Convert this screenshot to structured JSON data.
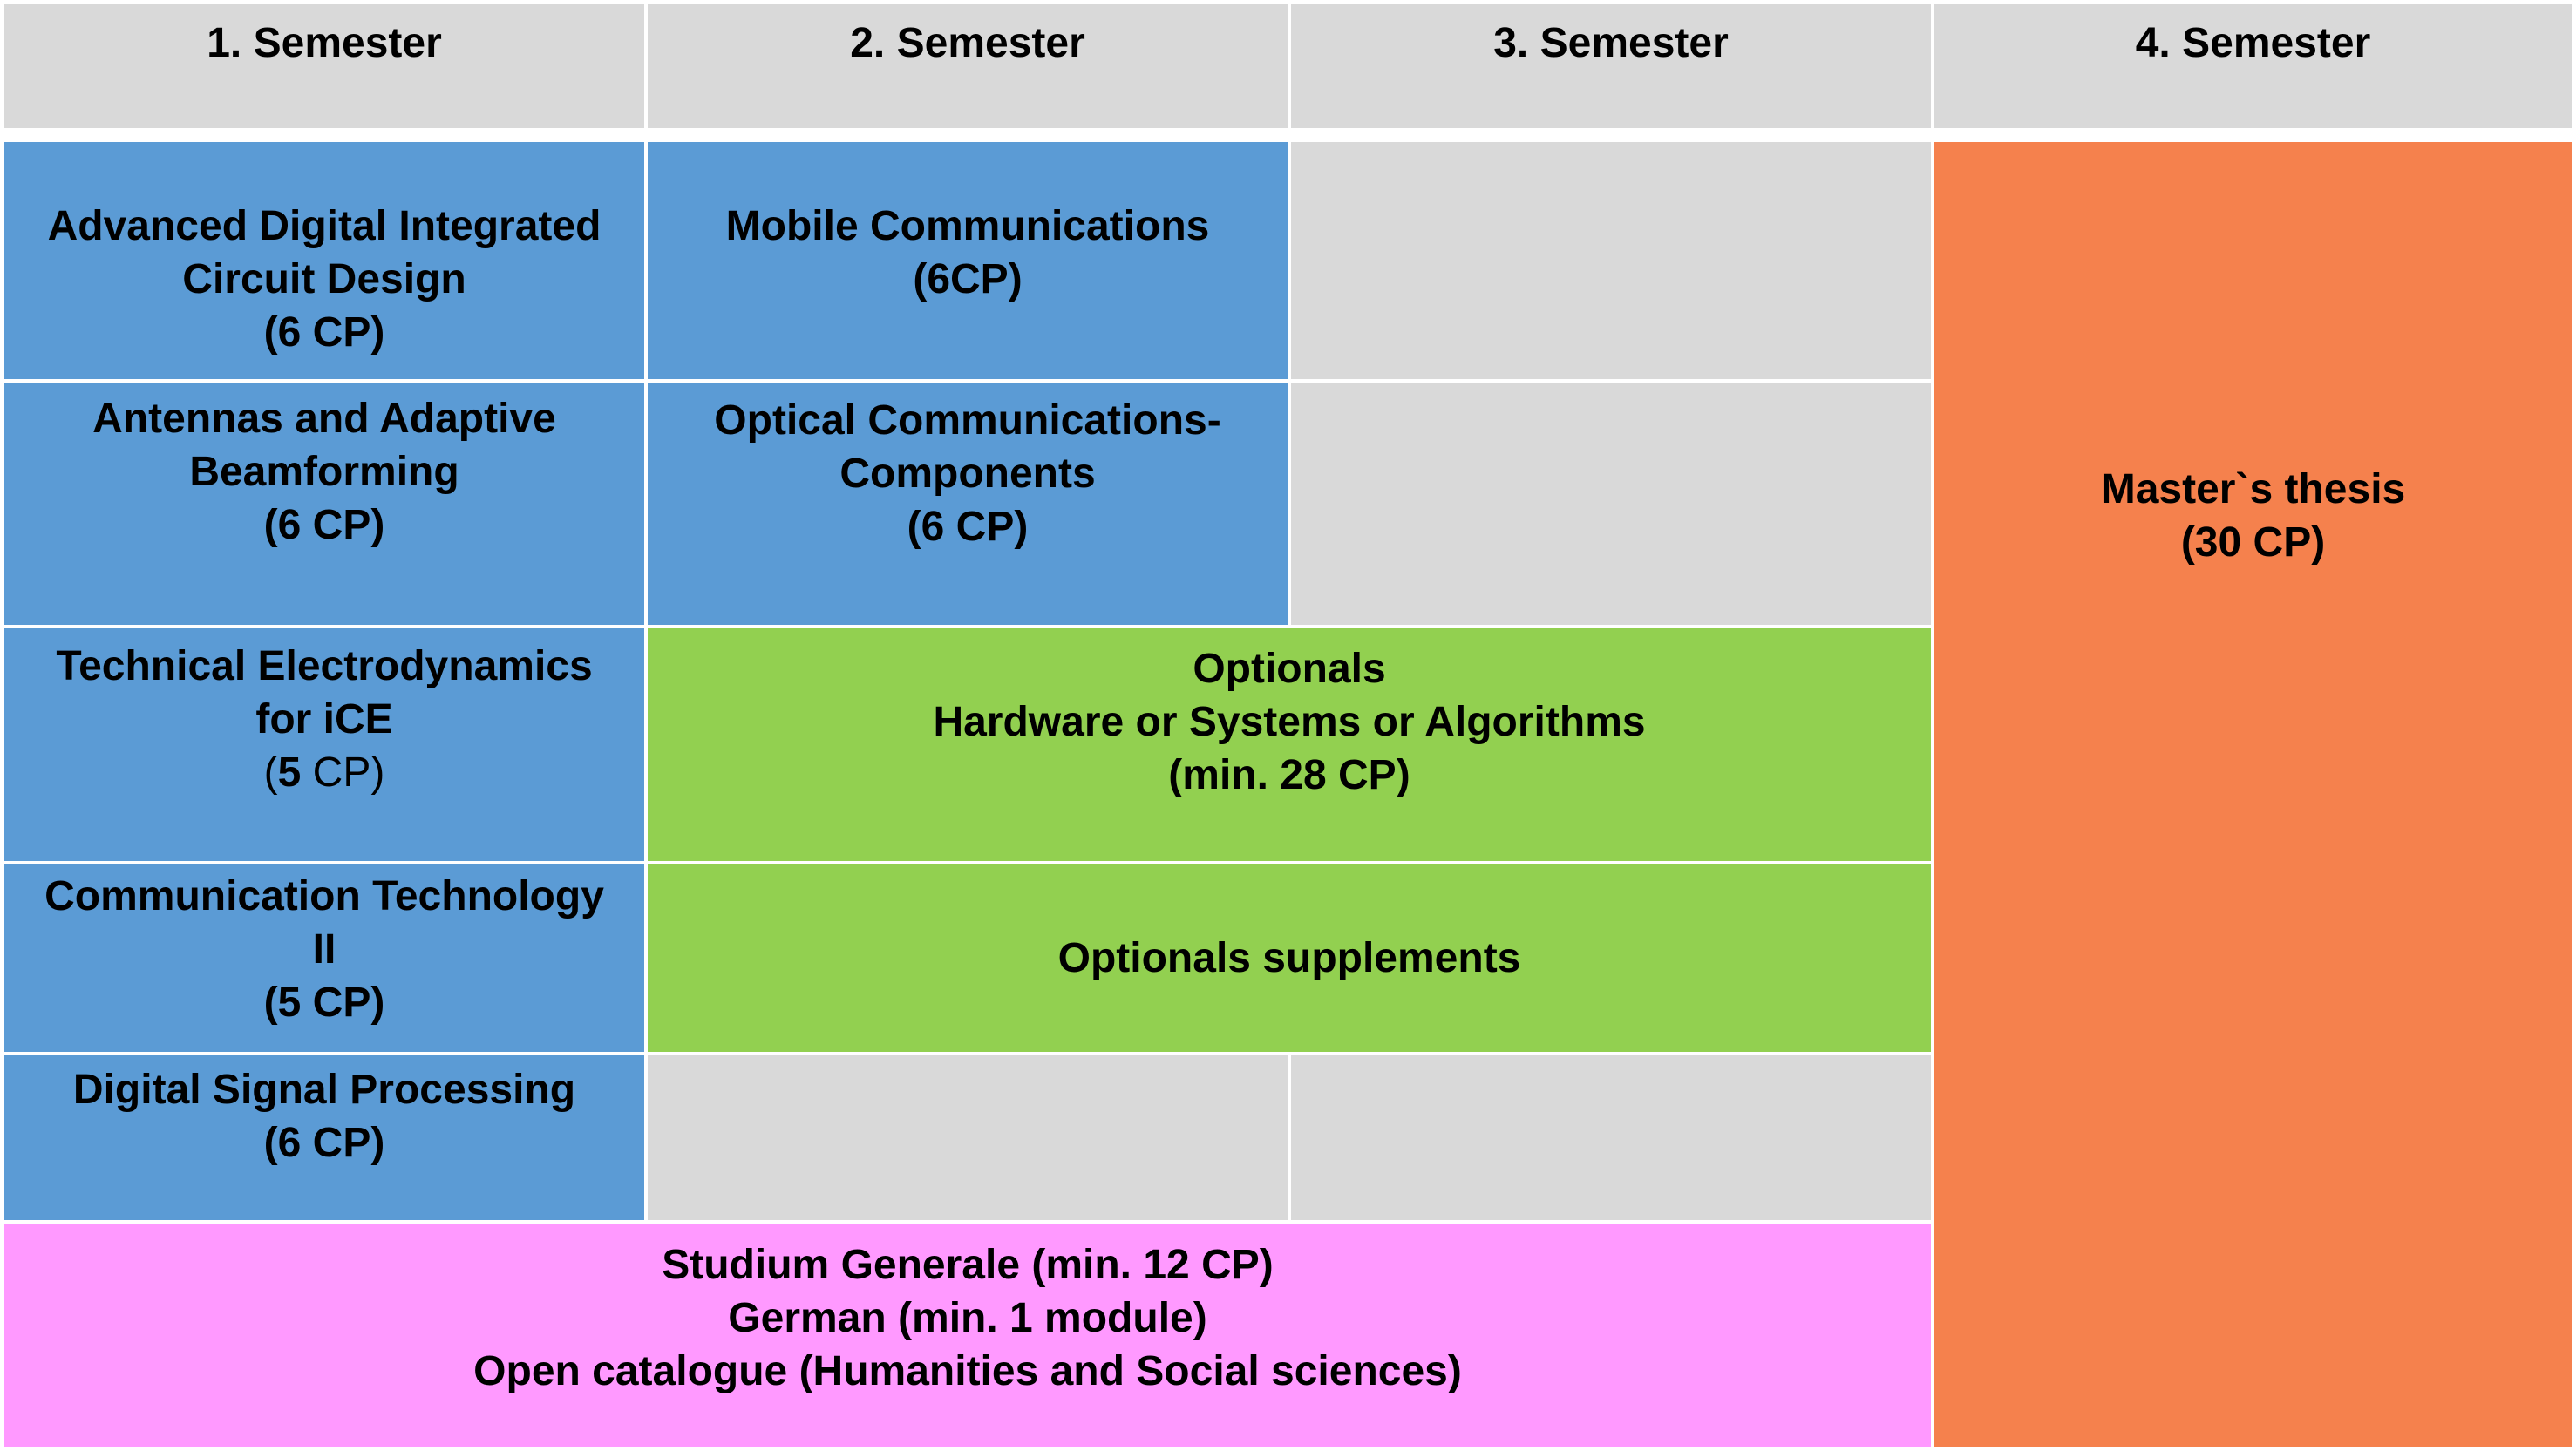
{
  "headers": [
    "1. Semester",
    "2. Semester",
    "3. Semester",
    "4. Semester"
  ],
  "colors": {
    "header": "#d9d9d9",
    "compulsory": "#5b9bd5",
    "optional": "#92d050",
    "general": "#ff99ff",
    "thesis": "#f5814d",
    "empty": "#d9d9d9"
  },
  "modules": {
    "adic": {
      "l1": "Advanced Digital Integrated",
      "l2": "Circuit Design",
      "l3": "(6 CP)"
    },
    "mobile": {
      "l1": "Mobile Communications",
      "l2": "(6CP)"
    },
    "antennas": {
      "l1": "Antennas and Adaptive",
      "l2": "Beamforming",
      "l3": "(6 CP)"
    },
    "optical": {
      "l1": "Optical Communications-",
      "l2": "Components",
      "l3": "(6 CP)"
    },
    "ted": {
      "l1": "Technical Electrodynamics",
      "l2": "for iCE",
      "l3a": "(",
      "l3b": "5",
      "l3c": " CP)"
    },
    "optionals": {
      "l1": "Optionals",
      "l2": "Hardware or Systems or Algorithms",
      "l3": "(min. 28 CP)"
    },
    "comtech": {
      "l1": "Communication Technology",
      "l2": "II",
      "l3": "(5 CP)"
    },
    "supplements": {
      "l1": "Optionals supplements"
    },
    "dsp": {
      "l1": "Digital Signal Processing",
      "l2": "(6 CP)"
    },
    "general": {
      "l1": "Studium Generale (min. 12 CP)",
      "l2": "German (min. 1 module)",
      "l3": "Open catalogue (Humanities and Social sciences)"
    },
    "thesis": {
      "l1": "Master`s thesis",
      "l2": "(30 CP)"
    }
  }
}
